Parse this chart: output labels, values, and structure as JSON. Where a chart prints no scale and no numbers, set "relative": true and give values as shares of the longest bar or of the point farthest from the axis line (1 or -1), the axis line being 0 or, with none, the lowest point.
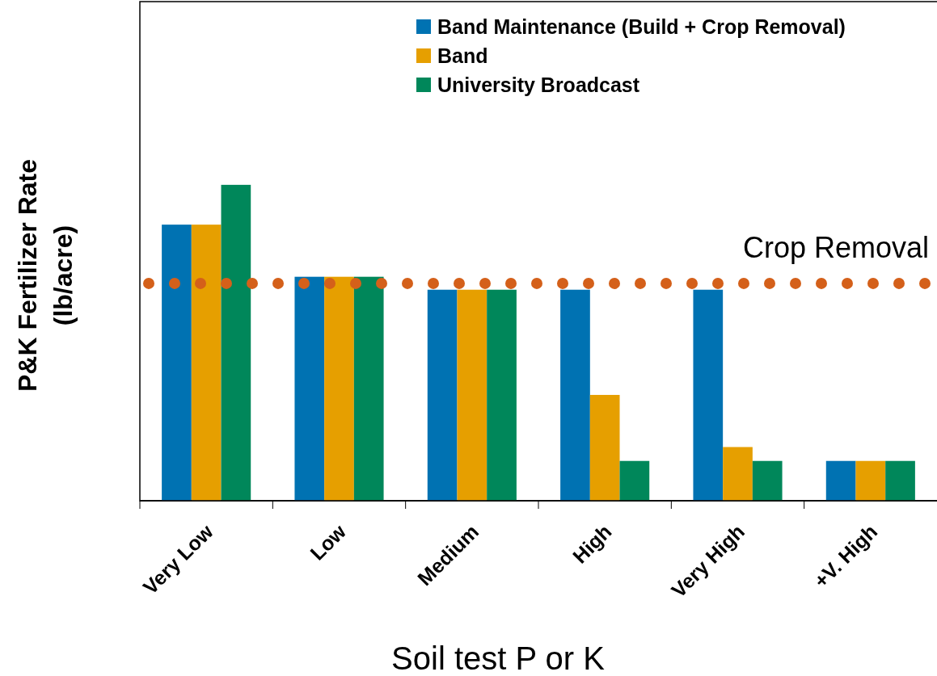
{
  "chart_data": {
    "type": "bar",
    "relative": true,
    "xlabel": "Soil test P or K",
    "ylabel": "P&K Fertilizer Rate\n(lb/acre)",
    "categories": [
      "Very Low",
      "Low",
      "Medium",
      "High",
      "Very High",
      "+V. High"
    ],
    "series": [
      {
        "name": "Band Maintenance (Build + Crop Removal)",
        "color": "#0072b2",
        "values": [
          0.874,
          0.709,
          0.668,
          0.668,
          0.668,
          0.126
        ]
      },
      {
        "name": "Band",
        "color": "#e69f00",
        "values": [
          0.874,
          0.709,
          0.668,
          0.335,
          0.17,
          0.126
        ]
      },
      {
        "name": "University Broadcast",
        "color": "#00875a",
        "values": [
          1,
          0.709,
          0.668,
          0.126,
          0.126,
          0.126
        ]
      }
    ],
    "ref_lines": [
      {
        "axis": "y",
        "value": 0.688,
        "label": "Crop Removal",
        "color": "#d4601a",
        "line_style": "dotted"
      }
    ],
    "legend": "top right",
    "grid": false
  }
}
